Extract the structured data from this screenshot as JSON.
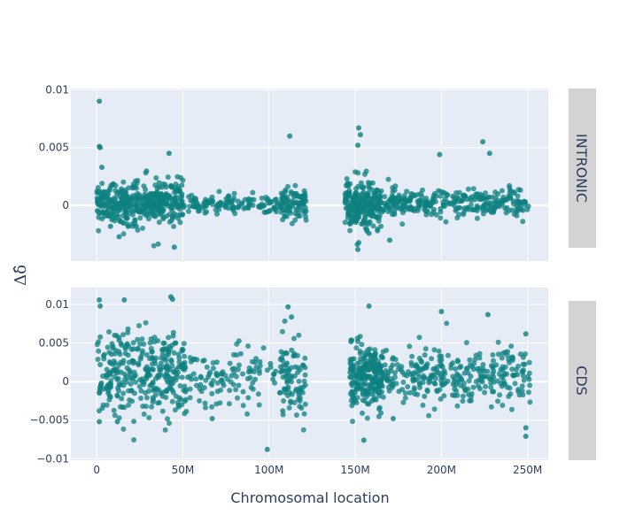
{
  "chart_data": {
    "type": "scatter",
    "x_label": "Chromosomal location",
    "y_label": "Δδ̂",
    "x_range": [
      -15000000,
      262000000
    ],
    "x_ticks": [
      {
        "value": 0,
        "label": "0"
      },
      {
        "value": 50000000,
        "label": "50M"
      },
      {
        "value": 100000000,
        "label": "100M"
      },
      {
        "value": 150000000,
        "label": "150M"
      },
      {
        "value": 200000000,
        "label": "200M"
      },
      {
        "value": 250000000,
        "label": "250M"
      }
    ],
    "marker_color": "#0d8080",
    "panels": [
      {
        "name": "INTRONIC",
        "y_range": [
          -0.0048,
          0.0101
        ],
        "y_ticks": [
          {
            "value": 0,
            "label": "0"
          },
          {
            "value": 0.005,
            "label": "0.005"
          },
          {
            "value": 0.01,
            "label": "0.01"
          }
        ],
        "clusters": [
          {
            "x_start": 0,
            "x_end": 50000000,
            "count": 430,
            "spread": 0.0009,
            "center": 0.0003
          },
          {
            "x_start": 50000000,
            "x_end": 105000000,
            "count": 130,
            "spread": 0.0004,
            "center": 0.0001
          },
          {
            "x_start": 106000000,
            "x_end": 122000000,
            "count": 95,
            "spread": 0.0007,
            "center": 0.0002
          },
          {
            "x_start": 144000000,
            "x_end": 165000000,
            "count": 250,
            "spread": 0.0009,
            "center": 0.0001
          },
          {
            "x_start": 165000000,
            "x_end": 252000000,
            "count": 300,
            "spread": 0.0006,
            "center": 0.0002
          }
        ],
        "outliers": [
          {
            "x": 1500000,
            "y": 0.009
          },
          {
            "x": 1500000,
            "y": 0.0051
          },
          {
            "x": 2000000,
            "y": 0.005
          },
          {
            "x": 3000000,
            "y": 0.0033
          },
          {
            "x": 42000000,
            "y": 0.0045
          },
          {
            "x": 45000000,
            "y": -0.0036
          },
          {
            "x": 112000000,
            "y": 0.006
          },
          {
            "x": 152000000,
            "y": 0.0067
          },
          {
            "x": 153000000,
            "y": 0.0061
          },
          {
            "x": 151500000,
            "y": 0.0052
          },
          {
            "x": 151500000,
            "y": -0.0038
          },
          {
            "x": 152000000,
            "y": -0.0032
          },
          {
            "x": 170000000,
            "y": -0.003
          },
          {
            "x": 199000000,
            "y": 0.0044
          },
          {
            "x": 224000000,
            "y": 0.0055
          },
          {
            "x": 228000000,
            "y": 0.0045
          },
          {
            "x": 8000000,
            "y": -0.0018
          },
          {
            "x": 13000000,
            "y": -0.0027
          },
          {
            "x": 23000000,
            "y": -0.0018
          },
          {
            "x": 158000000,
            "y": -0.0024
          }
        ]
      },
      {
        "name": "CDS",
        "y_range": [
          -0.0102,
          0.0122
        ],
        "y_ticks": [
          {
            "value": -0.01,
            "label": "−0.01"
          },
          {
            "value": -0.005,
            "label": "−0.005"
          },
          {
            "value": 0,
            "label": "0"
          },
          {
            "value": 0.005,
            "label": "0.005"
          },
          {
            "value": 0.01,
            "label": "0.01"
          }
        ],
        "clusters": [
          {
            "x_start": 0,
            "x_end": 52000000,
            "count": 330,
            "spread": 0.0028,
            "center": 0.0012
          },
          {
            "x_start": 52000000,
            "x_end": 104000000,
            "count": 110,
            "spread": 0.0018,
            "center": 0.0008
          },
          {
            "x_start": 106000000,
            "x_end": 122000000,
            "count": 85,
            "spread": 0.0022,
            "center": 0.0008
          },
          {
            "x_start": 147000000,
            "x_end": 166000000,
            "count": 230,
            "spread": 0.002,
            "center": 0.0006
          },
          {
            "x_start": 166000000,
            "x_end": 252000000,
            "count": 300,
            "spread": 0.0018,
            "center": 0.0008
          }
        ],
        "outliers": [
          {
            "x": 1500000,
            "y": 0.0106
          },
          {
            "x": 2000000,
            "y": 0.0098
          },
          {
            "x": 16000000,
            "y": 0.0106
          },
          {
            "x": 43000000,
            "y": 0.011
          },
          {
            "x": 44000000,
            "y": 0.0107
          },
          {
            "x": 1500000,
            "y": -0.0052
          },
          {
            "x": 12000000,
            "y": -0.0052
          },
          {
            "x": 67000000,
            "y": -0.0048
          },
          {
            "x": 99000000,
            "y": -0.0088
          },
          {
            "x": 108000000,
            "y": -0.0038
          },
          {
            "x": 111000000,
            "y": 0.0097
          },
          {
            "x": 113000000,
            "y": 0.0084
          },
          {
            "x": 158000000,
            "y": 0.0098
          },
          {
            "x": 155000000,
            "y": -0.0076
          },
          {
            "x": 200000000,
            "y": 0.0091
          },
          {
            "x": 227000000,
            "y": 0.0087
          },
          {
            "x": 249000000,
            "y": -0.006
          },
          {
            "x": 249000000,
            "y": -0.0071
          },
          {
            "x": 249000000,
            "y": 0.0062
          },
          {
            "x": 172000000,
            "y": -0.0048
          }
        ]
      }
    ]
  }
}
